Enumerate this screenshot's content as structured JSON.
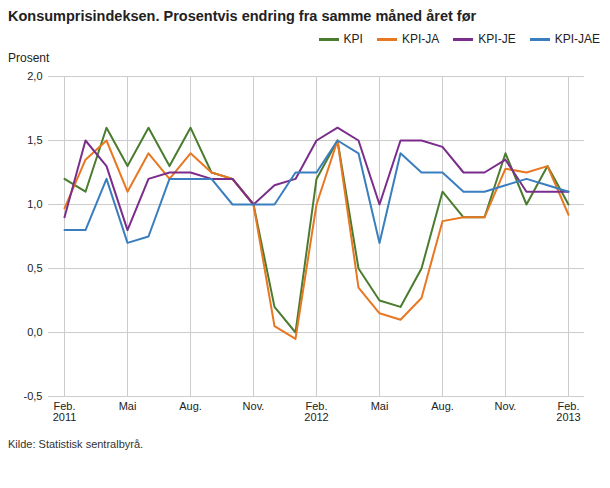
{
  "chart_data": {
    "type": "line",
    "title": "Konsumprisindeksen. Prosentvis endring fra samme måned året før",
    "ylabel": "Prosent",
    "source": "Kilde: Statistisk sentralbyrå.",
    "categories": [
      "Feb.\n2011",
      null,
      null,
      "Mai",
      null,
      null,
      "Aug.",
      null,
      null,
      "Nov.",
      null,
      null,
      "Feb.\n2012",
      null,
      null,
      "Mai",
      null,
      null,
      "Aug.",
      null,
      null,
      "Nov.",
      null,
      null,
      "Feb.\n2013"
    ],
    "series": [
      {
        "name": "KPI",
        "color": "#4a7c2f",
        "values": [
          1.2,
          1.1,
          1.6,
          1.3,
          1.6,
          1.3,
          1.6,
          1.25,
          1.2,
          1.0,
          0.2,
          0.0,
          1.2,
          1.5,
          0.5,
          0.25,
          0.2,
          0.5,
          1.1,
          0.9,
          0.9,
          1.4,
          1.0,
          1.3,
          1.0
        ]
      },
      {
        "name": "KPI-JA",
        "color": "#e87722",
        "values": [
          0.97,
          1.35,
          1.5,
          1.1,
          1.4,
          1.2,
          1.4,
          1.25,
          1.2,
          1.0,
          0.05,
          -0.05,
          1.0,
          1.5,
          0.35,
          0.15,
          0.1,
          0.27,
          0.87,
          0.9,
          0.9,
          1.28,
          1.25,
          1.3,
          0.92
        ]
      },
      {
        "name": "KPI-JE",
        "color": "#7b2d8b",
        "values": [
          0.9,
          1.5,
          1.3,
          0.8,
          1.2,
          1.25,
          1.25,
          1.2,
          1.2,
          1.0,
          1.15,
          1.2,
          1.5,
          1.6,
          1.5,
          1.0,
          1.5,
          1.5,
          1.45,
          1.25,
          1.25,
          1.35,
          1.1,
          1.1,
          1.1
        ]
      },
      {
        "name": "KPI-JAE",
        "color": "#3a7ebf",
        "values": [
          0.8,
          0.8,
          1.2,
          0.7,
          0.75,
          1.2,
          1.2,
          1.2,
          1.0,
          1.0,
          1.0,
          1.25,
          1.25,
          1.5,
          1.4,
          0.7,
          1.4,
          1.25,
          1.25,
          1.1,
          1.1,
          1.15,
          1.2,
          1.15,
          1.1
        ]
      }
    ],
    "ylim": [
      -0.5,
      2.0
    ],
    "yticks": [
      {
        "value": -0.5,
        "label": "-0,5"
      },
      {
        "value": 0.0,
        "label": "0,0"
      },
      {
        "value": 0.5,
        "label": "0,5"
      },
      {
        "value": 1.0,
        "label": "1,0"
      },
      {
        "value": 1.5,
        "label": "1,5"
      },
      {
        "value": 2.0,
        "label": "2,0"
      }
    ],
    "grid": true,
    "legend": "upper right"
  }
}
